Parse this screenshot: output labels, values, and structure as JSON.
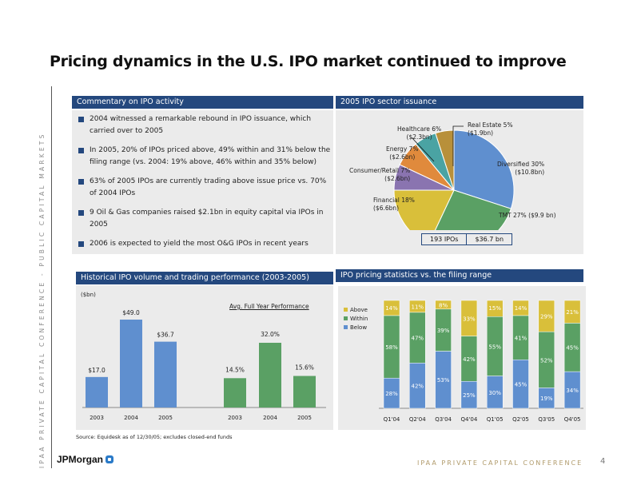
{
  "side_banner": "IPAA PRIVATE CAPITAL CONFERENCE - PUBLIC CAPITAL MARKETS",
  "title": "Pricing dynamics in the U.S. IPO market continued to improve",
  "commentary": {
    "header": "Commentary on IPO activity",
    "bullets": [
      "2004 witnessed a remarkable rebound in IPO issuance, which carried over to 2005",
      "In 2005, 20% of IPOs priced above, 49% within and 31% below the filing range (vs. 2004: 19% above, 46% within and 35% below)",
      "63% of 2005 IPOs are currently trading above issue price vs. 70% of 2004 IPOs",
      "9 Oil & Gas companies raised $2.1bn in equity capital via IPOs in 2005",
      "2006 is expected to yield the most O&G IPOs in recent years"
    ]
  },
  "sector": {
    "header": "2005 IPO sector issuance",
    "totals": {
      "count": "193 IPOs",
      "amount": "$36.7 bn"
    }
  },
  "historical": {
    "header": "Historical IPO volume and trading performance (2003-2005)",
    "unit": "($bn)",
    "perf_title": "Avg. Full Year Performance"
  },
  "pricing": {
    "header": "IPO pricing statistics vs. the filing range"
  },
  "chart_data": [
    {
      "type": "pie",
      "title": "2005 IPO sector issuance",
      "slices": [
        {
          "name": "Diversified",
          "percent": 30,
          "amount": "$10.8bn",
          "label": "Diversified 30%",
          "sub": "($10.8bn)",
          "color": "#5f8fcf"
        },
        {
          "name": "TMT",
          "percent": 27,
          "amount": "$9.9bn",
          "label": "TMT  27% ($9.9 bn)",
          "sub": "",
          "color": "#5aa064"
        },
        {
          "name": "Financial",
          "percent": 18,
          "amount": "$6.6bn",
          "label": "Financial 18%",
          "sub": "($6.6bn)",
          "color": "#d9bf3a"
        },
        {
          "name": "Consumer/Retail",
          "percent": 7,
          "amount": "$2.6bn",
          "label": "Consumer/Retail 7%",
          "sub": "($2.6bn)",
          "color": "#8a74b0"
        },
        {
          "name": "Energy",
          "percent": 7,
          "amount": "$2.6bn",
          "label": "Energy 7%",
          "sub": "($2.6bn)",
          "color": "#e08a3c"
        },
        {
          "name": "Healthcare",
          "percent": 6,
          "amount": "$2.3bn",
          "label": "Healthcare 6%",
          "sub": "($2.3bn)",
          "color": "#4aa3a3"
        },
        {
          "name": "Real Estate",
          "percent": 5,
          "amount": "$1.9bn",
          "label": "Real Estate 5%",
          "sub": "($1.9bn)",
          "color": "#b8903a"
        }
      ]
    },
    {
      "type": "bar",
      "title": "Historical IPO volume ($bn)",
      "categories": [
        "2003",
        "2004",
        "2005"
      ],
      "values": [
        17.0,
        49.0,
        36.7
      ],
      "labels": [
        "$17.0",
        "$49.0",
        "$36.7"
      ],
      "color": "#5f8fcf"
    },
    {
      "type": "bar",
      "title": "Avg. Full Year Performance",
      "categories": [
        "2003",
        "2004",
        "2005"
      ],
      "values": [
        14.5,
        32.0,
        15.6
      ],
      "labels": [
        "14.5%",
        "32.0%",
        "15.6%"
      ],
      "color": "#5aa064"
    },
    {
      "type": "bar",
      "stacked": true,
      "title": "IPO pricing statistics vs. the filing range",
      "categories": [
        "Q1'04",
        "Q2'04",
        "Q3'04",
        "Q4'04",
        "Q1'05",
        "Q2'05",
        "Q3'05",
        "Q4'05"
      ],
      "legend": [
        "Above",
        "Within",
        "Below"
      ],
      "legend_position": "left",
      "series": [
        {
          "name": "Below",
          "values": [
            28,
            42,
            53,
            25,
            30,
            45,
            19,
            34
          ],
          "color": "#5f8fcf"
        },
        {
          "name": "Within",
          "values": [
            58,
            47,
            39,
            42,
            55,
            41,
            52,
            45
          ],
          "color": "#5aa064"
        },
        {
          "name": "Above",
          "values": [
            14,
            11,
            8,
            33,
            15,
            14,
            29,
            21
          ],
          "color": "#d9bf3a"
        }
      ],
      "ylim": [
        0,
        100
      ]
    }
  ],
  "footer": {
    "source": "Source: Equidesk as of 12/30/05; excludes closed-end funds",
    "logo": "JPMorgan",
    "conference": "IPAA PRIVATE CAPITAL CONFERENCE",
    "page": "4"
  }
}
